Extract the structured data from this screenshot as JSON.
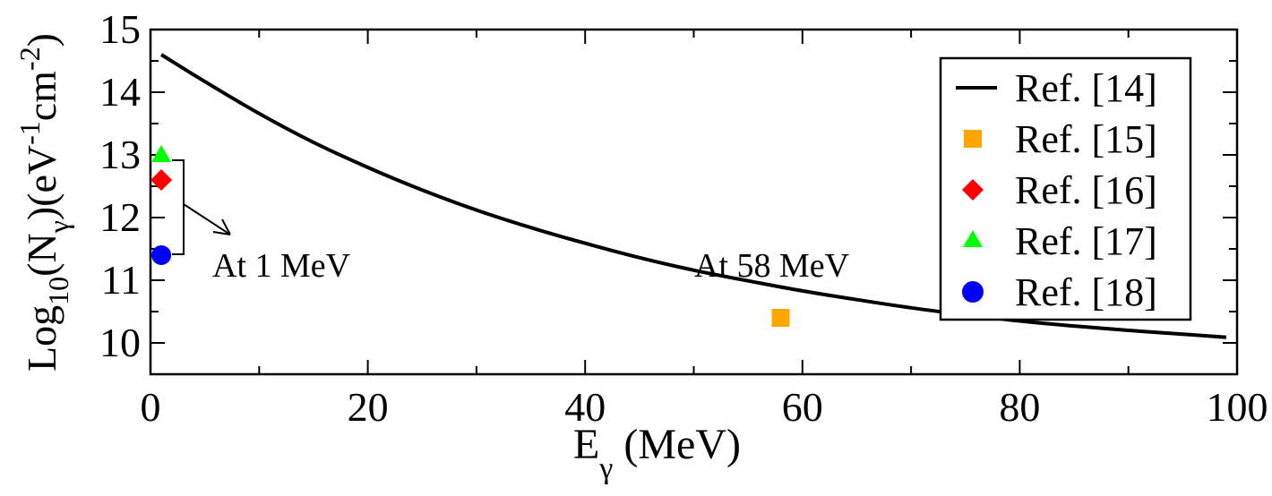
{
  "chart_data": {
    "type": "line",
    "xlabel": {
      "main": "E",
      "sub": "γ",
      "unit": " (MeV)"
    },
    "ylabel": {
      "p1": "Log",
      "sub1": "10",
      "p2": "(N",
      "sub2": "γ",
      "p3": ")(eV",
      "sup1": "-1",
      "p4": "cm",
      "sup2": "-2",
      "p5": ")"
    },
    "xlim": [
      0,
      100
    ],
    "ylim": [
      9.5,
      15
    ],
    "x_ticks": [
      0,
      20,
      40,
      60,
      80,
      100
    ],
    "x_tick_labels": [
      "0",
      "20",
      "40",
      "60",
      "80",
      "100"
    ],
    "y_ticks": [
      10,
      11,
      12,
      13,
      14,
      15
    ],
    "y_tick_labels": [
      "10",
      "11",
      "12",
      "13",
      "14",
      "15"
    ],
    "grid": false,
    "legend_position": "top-right",
    "series": [
      {
        "name": "Ref. [14]",
        "kind": "line",
        "color": "#000000",
        "x": [
          1,
          5,
          10,
          15,
          20,
          25,
          30,
          35,
          40,
          45,
          50,
          55,
          60,
          65,
          70,
          75,
          80,
          85,
          90,
          95,
          99
        ],
        "y": [
          14.6,
          14.17,
          13.66,
          13.2,
          12.8,
          12.44,
          12.12,
          11.84,
          11.59,
          11.36,
          11.16,
          10.99,
          10.83,
          10.69,
          10.56,
          10.45,
          10.35,
          10.27,
          10.2,
          10.14,
          10.09
        ],
        "curve": "decay"
      },
      {
        "name": "Ref. [15]",
        "kind": "square",
        "color": "#FFA500",
        "x": [
          58
        ],
        "y": [
          10.4
        ]
      },
      {
        "name": "Ref. [16]",
        "kind": "diamond",
        "color": "#FF0000",
        "x": [
          1
        ],
        "y": [
          12.6
        ]
      },
      {
        "name": "Ref. [17]",
        "kind": "triangle",
        "color": "#00FF00",
        "x": [
          1
        ],
        "y": [
          13.0
        ]
      },
      {
        "name": "Ref. [18]",
        "kind": "circle",
        "color": "#0000FF",
        "x": [
          1
        ],
        "y": [
          11.4
        ]
      }
    ],
    "annotations": [
      {
        "text": "At 1 MeV"
      },
      {
        "text": "At 58 MeV"
      }
    ]
  }
}
